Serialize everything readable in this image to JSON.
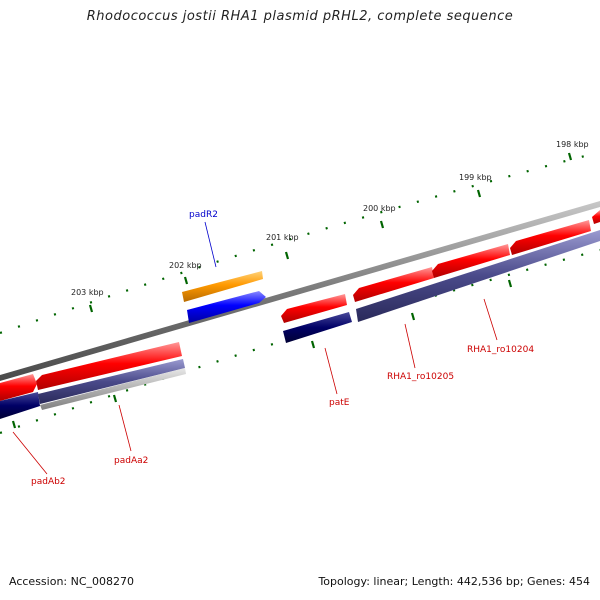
{
  "title": "Rhodococcus jostii RHA1 plasmid pRHL2, complete sequence",
  "accession_text": "Accession: NC_008270",
  "summary_text": "Topology: linear; Length: 442,536 bp; Genes: 454",
  "scale_labels": [
    "198 kbp",
    "199 kbp",
    "200 kbp",
    "201 kbp",
    "202 kbp",
    "203 kbp"
  ],
  "genes": [
    {
      "name": "padR2",
      "color": "#0000ff"
    },
    {
      "name": "patE",
      "color": "#cc0000"
    },
    {
      "name": "RHA1_ro10205",
      "color": "#cc0000"
    },
    {
      "name": "RHA1_ro10204",
      "color": "#cc0000"
    },
    {
      "name": "padAa2",
      "color": "#cc0000"
    },
    {
      "name": "padAb2",
      "color": "#cc0000"
    }
  ],
  "colors": {
    "backbone": "#808080",
    "feature_red": "#ff0000",
    "feature_orange": "#ff8c00",
    "feature_blue": "#0000ff",
    "feature_navy": "#000066",
    "feature_slate": "#4a4a8a",
    "feature_gray": "#b0b0b0",
    "tick_green": "#006400"
  }
}
